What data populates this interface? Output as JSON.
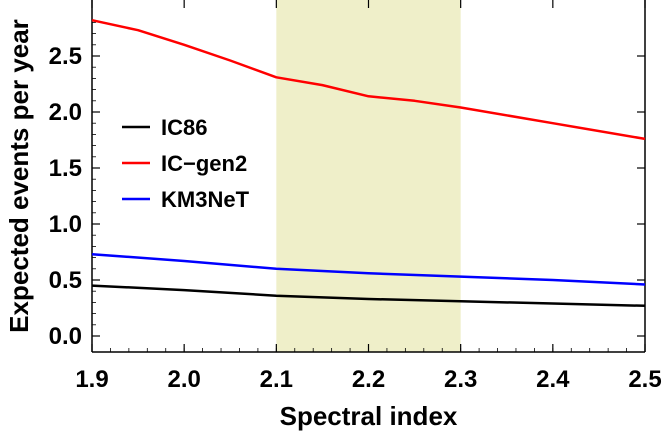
{
  "chart_data": {
    "type": "line",
    "xlabel": "Spectral index",
    "ylabel": "Expected events per year",
    "xlim": [
      1.9,
      2.5
    ],
    "ylim": [
      0.0,
      2.8
    ],
    "xticks": [
      "1.9",
      "2.0",
      "2.1",
      "2.2",
      "2.3",
      "2.4",
      "2.5"
    ],
    "yticks": [
      "0.0",
      "0.5",
      "1.0",
      "1.5",
      "2.0",
      "2.5"
    ],
    "shaded_band": {
      "x": [
        2.1,
        2.3
      ],
      "color": "#efefc9"
    },
    "legend_position": "left-center",
    "grid": false,
    "series": [
      {
        "name": "IC86",
        "color": "#000000",
        "x": [
          1.9,
          2.0,
          2.1,
          2.2,
          2.3,
          2.4,
          2.5
        ],
        "y": [
          0.45,
          0.41,
          0.36,
          0.33,
          0.31,
          0.29,
          0.27
        ]
      },
      {
        "name": "IC−gen2",
        "color": "#ff0000",
        "x": [
          1.9,
          1.95,
          2.0,
          2.05,
          2.1,
          2.15,
          2.2,
          2.25,
          2.3,
          2.4,
          2.5
        ],
        "y": [
          2.82,
          2.73,
          2.6,
          2.46,
          2.31,
          2.24,
          2.14,
          2.1,
          2.04,
          1.9,
          1.76
        ]
      },
      {
        "name": "KM3NeT",
        "color": "#0000ff",
        "x": [
          1.9,
          2.0,
          2.1,
          2.2,
          2.3,
          2.4,
          2.5
        ],
        "y": [
          0.73,
          0.67,
          0.6,
          0.56,
          0.53,
          0.5,
          0.46
        ]
      }
    ]
  }
}
